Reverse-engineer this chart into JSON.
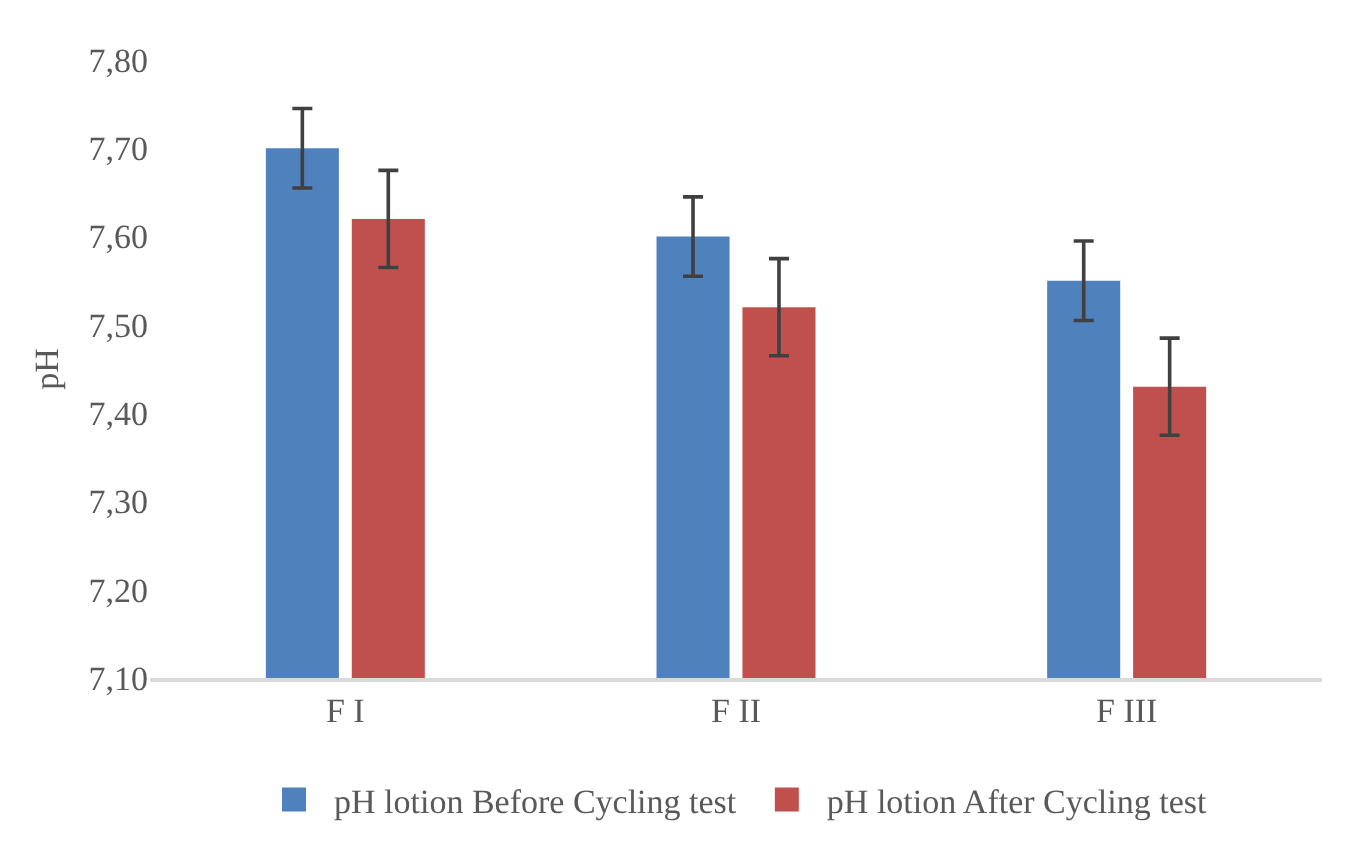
{
  "chart_data": {
    "type": "bar",
    "ylabel": "pH",
    "categories": [
      "F I",
      "F II",
      "F III"
    ],
    "series": [
      {
        "name": "pH lotion Before Cycling test",
        "color": "#4f81bd",
        "values": [
          7.7,
          7.6,
          7.55
        ],
        "errors": [
          0.045,
          0.045,
          0.045
        ]
      },
      {
        "name": "pH lotion After Cycling test",
        "color": "#c0504d",
        "values": [
          7.62,
          7.52,
          7.43
        ],
        "errors": [
          0.055,
          0.055,
          0.055
        ]
      }
    ],
    "ylim": [
      7.1,
      7.8
    ],
    "yticks": [
      {
        "value": 7.1,
        "label": "7,10"
      },
      {
        "value": 7.2,
        "label": "7,20"
      },
      {
        "value": 7.3,
        "label": "7,30"
      },
      {
        "value": 7.4,
        "label": "7,40"
      },
      {
        "value": 7.5,
        "label": "7,50"
      },
      {
        "value": 7.6,
        "label": "7,60"
      },
      {
        "value": 7.7,
        "label": "7,70"
      },
      {
        "value": 7.8,
        "label": "7,80"
      }
    ],
    "grid": false,
    "legend": "bottom"
  }
}
